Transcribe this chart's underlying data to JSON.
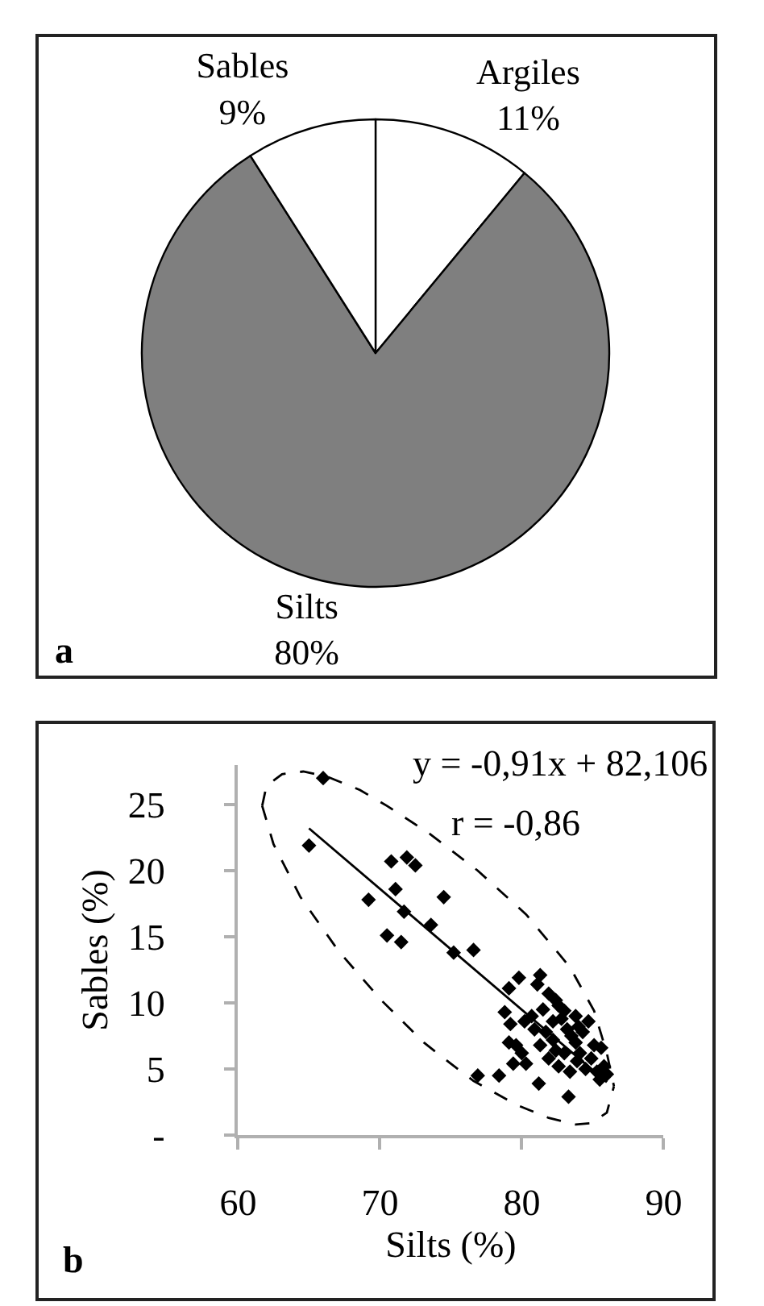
{
  "chart_data": [
    {
      "type": "pie",
      "categories": [
        "Argiles",
        "Silts",
        "Sables"
      ],
      "values": [
        11,
        80,
        9
      ],
      "value_labels": [
        "11%",
        "80%",
        "9%"
      ],
      "colors": [
        "#ffffff",
        "#7f7f7f",
        "#ffffff"
      ],
      "annotations": [
        "a"
      ]
    },
    {
      "type": "scatter",
      "xlabel": "Silts (%)",
      "ylabel": "Sables (%)",
      "annotations": [
        "y = -0,91x + 82,106",
        "r = -0,86",
        "b"
      ],
      "xlim": [
        60,
        90
      ],
      "xticks": [
        60,
        70,
        80,
        90
      ],
      "ylim": [
        0,
        28
      ],
      "yticks": [
        {
          "value": 0,
          "label": "-"
        },
        5,
        10,
        15,
        20,
        25
      ],
      "series": [
        {
          "type": "scatter",
          "marker": "diamond",
          "color": "#000000",
          "x": [
            66.0,
            65.0,
            70.8,
            71.9,
            72.5,
            71.1,
            69.2,
            74.5,
            71.7,
            73.6,
            70.5,
            71.5,
            75.2,
            76.6,
            76.9,
            78.4,
            81.2,
            83.3,
            79.8,
            79.1,
            81.3,
            81.1,
            78.8,
            79.2,
            79.1,
            79.6,
            79.4,
            80.3,
            81.9,
            82.4,
            85.8,
            86.0,
            85.1,
            85.6,
            84.3,
            83.8,
            83.0,
            82.2,
            81.7,
            81.3,
            81.9,
            82.6,
            83.4,
            83.9,
            84.5,
            83.0,
            82.2,
            83.8,
            83.2,
            80.7,
            80.2,
            80.9,
            82.6,
            84.1,
            84.7,
            84.9,
            80.0,
            82.4,
            83.5,
            84.0,
            82.8,
            81.5,
            85.3,
            85.5
          ],
          "values": [
            27.0,
            21.9,
            20.7,
            21.0,
            20.4,
            18.6,
            17.8,
            18.0,
            16.9,
            15.9,
            15.1,
            14.6,
            13.8,
            14.0,
            4.5,
            4.5,
            3.9,
            2.9,
            11.9,
            11.1,
            12.1,
            11.4,
            9.3,
            8.4,
            7.0,
            6.8,
            5.4,
            5.4,
            10.7,
            10.2,
            5.2,
            4.6,
            6.8,
            6.6,
            7.8,
            9.0,
            9.4,
            8.6,
            7.8,
            6.8,
            5.8,
            5.2,
            4.8,
            5.6,
            5.0,
            6.2,
            7.2,
            7.0,
            8.0,
            9.0,
            8.6,
            8.0,
            9.8,
            6.2,
            8.6,
            5.8,
            6.2,
            6.4,
            7.5,
            8.2,
            8.8,
            9.5,
            4.8,
            4.2
          ]
        },
        {
          "type": "line",
          "color": "#000000",
          "line_style": "solid",
          "x": [
            65.0,
            86.0
          ],
          "values": [
            23.2,
            4.0
          ]
        },
        {
          "type": "line",
          "color": "#000000",
          "line_style": "dashed",
          "x": [
            61.7,
            62.0,
            63.1,
            64.6,
            66.3,
            68.6,
            70.5,
            73.5,
            76.9,
            80.3,
            83.4,
            85.1,
            86.0,
            86.5
          ],
          "values": [
            24.9,
            26.4,
            27.3,
            27.5,
            27.1,
            26.1,
            24.9,
            22.8,
            20.0,
            16.7,
            12.7,
            9.4,
            6.2,
            3.7
          ]
        },
        {
          "type": "line",
          "color": "#000000",
          "line_style": "dashed",
          "x": [
            61.7,
            62.5,
            64.4,
            67.1,
            70.1,
            73.1,
            75.0,
            76.6,
            79.6,
            81.9,
            83.8,
            84.9,
            86.0,
            86.5
          ],
          "values": [
            24.9,
            22.0,
            18.0,
            13.9,
            10.2,
            7.0,
            5.4,
            4.1,
            2.3,
            1.3,
            0.8,
            0.9,
            1.7,
            3.7
          ]
        }
      ]
    }
  ]
}
